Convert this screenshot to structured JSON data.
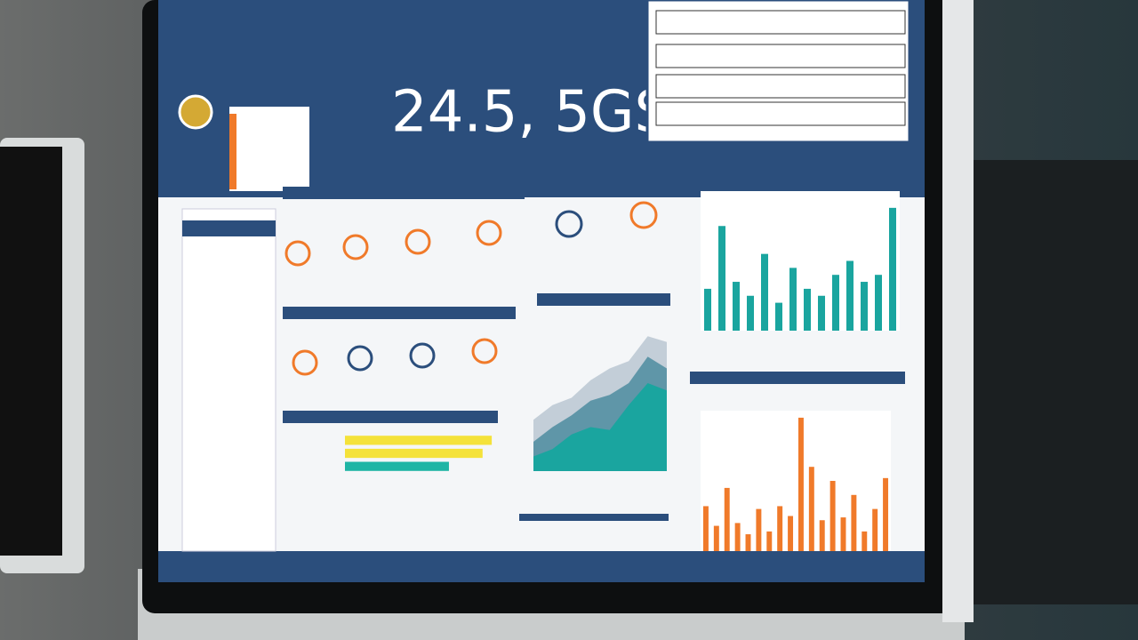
{
  "header": {
    "headline": "24.5, 5GS"
  },
  "chart_data": [
    {
      "type": "bar",
      "categories": [
        null,
        null,
        null,
        null,
        null,
        null,
        null,
        null,
        null,
        null,
        null,
        null,
        null,
        null
      ],
      "series": [
        {
          "color": "#1aa59f",
          "values": [
            30,
            75,
            35,
            25,
            55,
            20,
            45,
            30,
            25,
            40,
            50,
            35,
            40,
            88
          ]
        }
      ],
      "ylim": [
        0,
        100
      ]
    },
    {
      "type": "bar",
      "categories": [
        null,
        null,
        null,
        null,
        null,
        null,
        null,
        null,
        null,
        null,
        null,
        null,
        null,
        null,
        null,
        null,
        null,
        null
      ],
      "series": [
        {
          "color": "#f07a2a",
          "values": [
            32,
            18,
            45,
            20,
            12,
            30,
            14,
            32,
            25,
            95,
            60,
            22,
            50,
            24,
            40,
            14,
            30,
            52
          ]
        }
      ],
      "ylim": [
        0,
        100
      ]
    },
    {
      "type": "area",
      "categories": [
        null,
        null,
        null,
        null,
        null,
        null,
        null,
        null
      ],
      "series": [
        {
          "color": "#c3ced8",
          "values": [
            35,
            45,
            50,
            62,
            70,
            75,
            92,
            88
          ]
        },
        {
          "color": "#5f96a8",
          "values": [
            20,
            30,
            38,
            48,
            52,
            60,
            78,
            70
          ]
        },
        {
          "color": "#1aa59f",
          "values": [
            10,
            15,
            25,
            30,
            28,
            45,
            60,
            55
          ]
        }
      ],
      "ylim": [
        0,
        100
      ]
    },
    {
      "type": "hbar",
      "categories": [
        null,
        null,
        null
      ],
      "series": [
        {
          "color": "#f4e23a",
          "values": [
            96,
            90,
            68
          ]
        }
      ],
      "xlim": [
        0,
        100
      ]
    }
  ]
}
